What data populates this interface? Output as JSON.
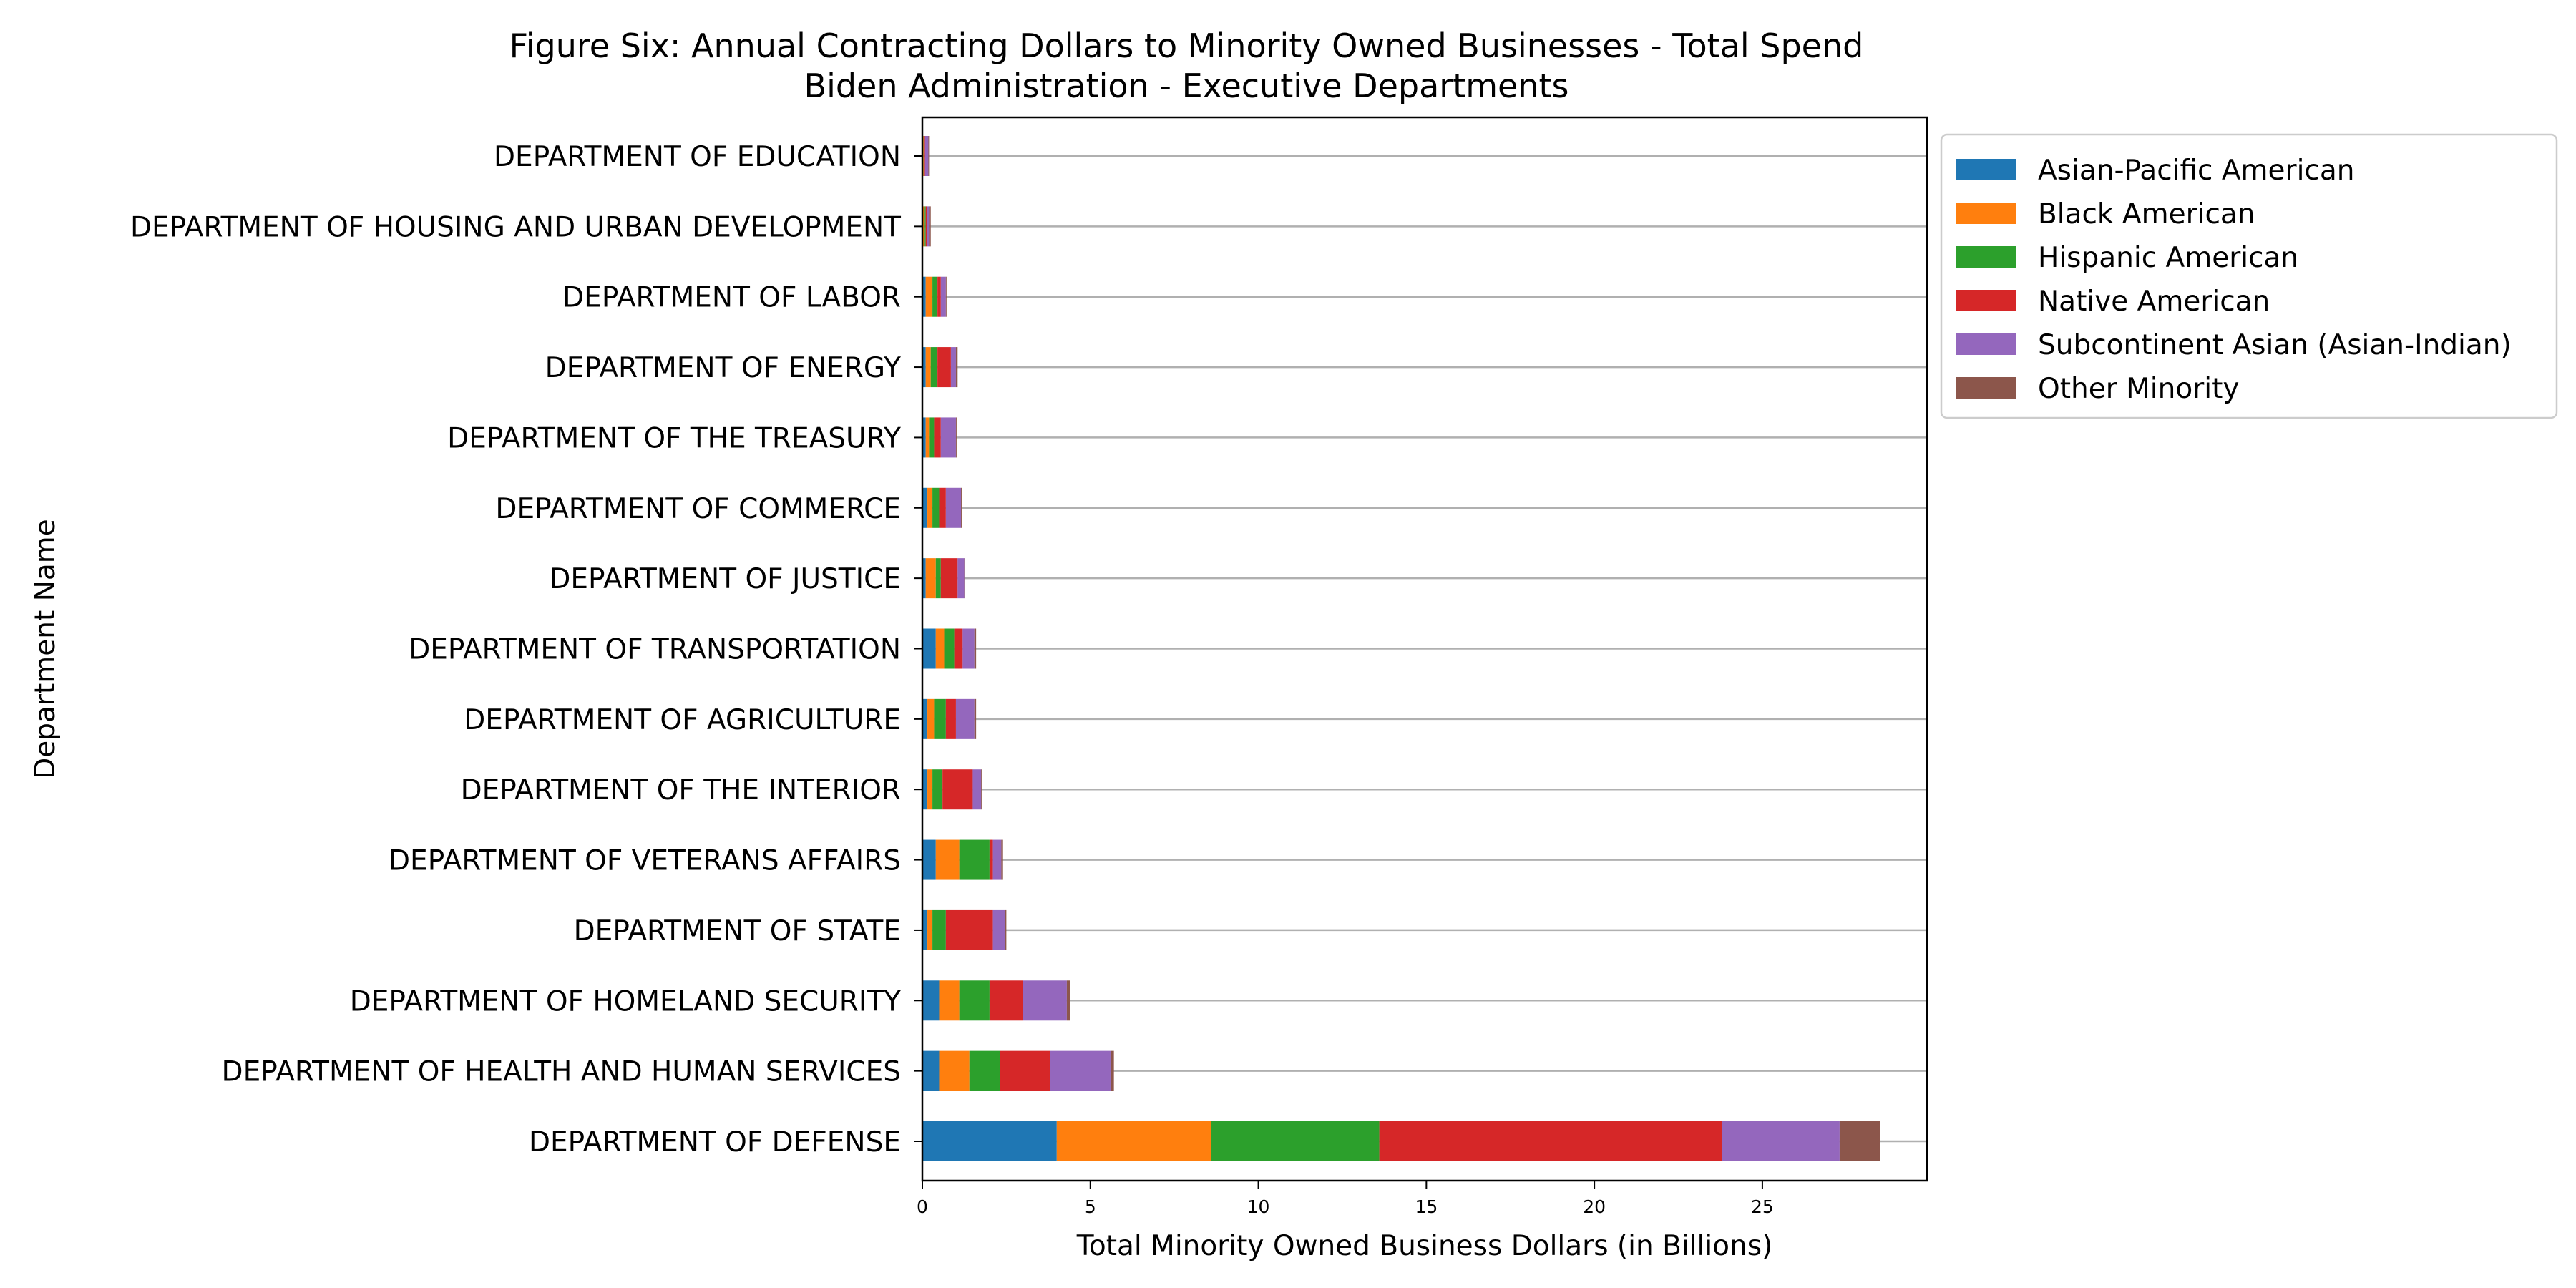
{
  "chart_data": {
    "type": "bar",
    "orientation": "horizontal",
    "stacked": true,
    "title": "Figure Six: Annual Contracting Dollars to Minority Owned Businesses - Total Spend",
    "subtitle": "Biden Administration - Executive Departments",
    "xlabel": "Total Minority Owned Business Dollars (in Billions)",
    "ylabel": "Department Name",
    "xlim": [
      0,
      29.9
    ],
    "xticks": [
      0,
      5,
      10,
      15,
      20,
      25
    ],
    "grid": "horizontal",
    "legend": "outside-top-right",
    "categories": [
      "DEPARTMENT OF EDUCATION",
      "DEPARTMENT OF HOUSING AND URBAN DEVELOPMENT",
      "DEPARTMENT OF LABOR",
      "DEPARTMENT OF ENERGY",
      "DEPARTMENT OF THE TREASURY",
      "DEPARTMENT OF COMMERCE",
      "DEPARTMENT OF JUSTICE",
      "DEPARTMENT OF TRANSPORTATION",
      "DEPARTMENT OF AGRICULTURE",
      "DEPARTMENT OF THE INTERIOR",
      "DEPARTMENT OF VETERANS AFFAIRS",
      "DEPARTMENT OF STATE",
      "DEPARTMENT OF HOMELAND SECURITY",
      "DEPARTMENT OF HEALTH AND HUMAN SERVICES",
      "DEPARTMENT OF DEFENSE"
    ],
    "series": [
      {
        "name": "Asian-Pacific American",
        "color": "#1f77b4",
        "values": [
          0.02,
          0.02,
          0.1,
          0.1,
          0.1,
          0.15,
          0.1,
          0.4,
          0.15,
          0.15,
          0.4,
          0.15,
          0.5,
          0.5,
          4.0
        ]
      },
      {
        "name": "Black American",
        "color": "#ff7f0e",
        "values": [
          0.02,
          0.05,
          0.2,
          0.15,
          0.1,
          0.15,
          0.3,
          0.25,
          0.2,
          0.15,
          0.7,
          0.15,
          0.6,
          0.9,
          4.6
        ]
      },
      {
        "name": "Hispanic American",
        "color": "#2ca02c",
        "values": [
          0.02,
          0.03,
          0.15,
          0.2,
          0.15,
          0.2,
          0.15,
          0.3,
          0.35,
          0.3,
          0.9,
          0.4,
          0.9,
          0.9,
          5.0
        ]
      },
      {
        "name": "Native American",
        "color": "#d62728",
        "values": [
          0.02,
          0.05,
          0.1,
          0.4,
          0.2,
          0.2,
          0.5,
          0.25,
          0.3,
          0.9,
          0.1,
          1.4,
          1.0,
          1.5,
          10.2
        ]
      },
      {
        "name": "Subcontinent Asian (Asian-Indian)",
        "color": "#9467bd",
        "values": [
          0.1,
          0.05,
          0.15,
          0.15,
          0.45,
          0.45,
          0.2,
          0.35,
          0.55,
          0.25,
          0.25,
          0.35,
          1.3,
          1.8,
          3.5
        ]
      },
      {
        "name": "Other Minority",
        "color": "#8c564b",
        "values": [
          0.02,
          0.05,
          0.02,
          0.05,
          0.02,
          0.02,
          0.02,
          0.05,
          0.05,
          0.02,
          0.05,
          0.05,
          0.1,
          0.1,
          1.2
        ]
      }
    ]
  }
}
